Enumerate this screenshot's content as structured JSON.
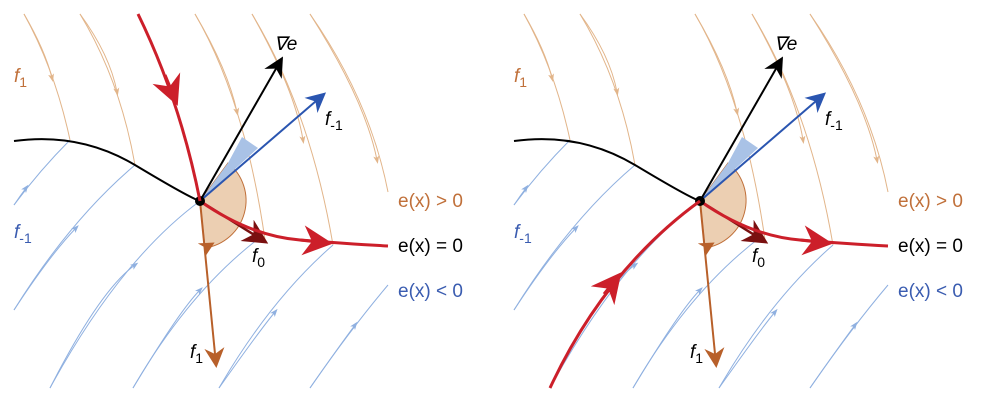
{
  "colors": {
    "f1_flow": "#e2b58a",
    "f_minus1_flow": "#8fb0e0",
    "trajectory": "#cc1f2a",
    "gradient": "#000000",
    "f_minus1_vector": "#2a55b0",
    "f1_vector": "#b8602a",
    "f0_vector": "#7a1010",
    "angle_fill_orange": "#eccfb2",
    "angle_fill_blue": "#a9c2e6",
    "label_positive": "#c0703a",
    "label_negative": "#3a5cb0"
  },
  "labels": {
    "grad": "∇e",
    "f_minus1": "f",
    "f_minus1_sub": "-1",
    "f0": "f",
    "f0_sub": "0",
    "f1": "f",
    "f1_sub": "1",
    "region_f1": "f",
    "region_f1_sub": "1",
    "region_fm1": "f",
    "region_fm1_sub": "-1",
    "e_pos": "e(x) > 0",
    "e_zero": "e(x) = 0",
    "e_neg": "e(x) < 0"
  },
  "panels": [
    {
      "name": "left",
      "trajectory": "sliding-from-above"
    },
    {
      "name": "right",
      "trajectory": "sliding-from-below"
    }
  ]
}
